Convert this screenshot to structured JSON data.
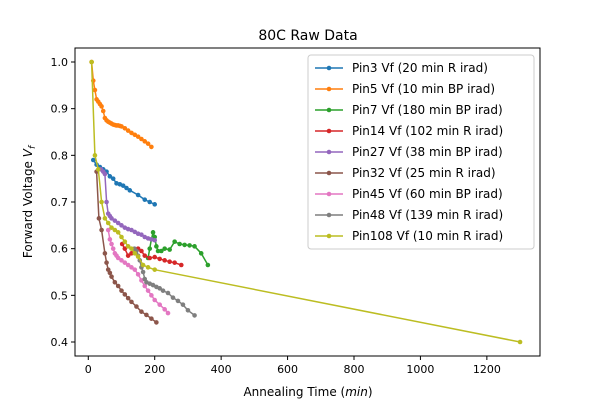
{
  "chart_data": {
    "type": "line",
    "title": "80C Raw Data",
    "xlabel_main": "Annealing Time (",
    "xlabel_italic": "min",
    "xlabel_end": ")",
    "ylabel_main": "Forward Voltage ",
    "ylabel_italic": "V",
    "ylabel_sub": "f",
    "xlim": [
      -40,
      1360
    ],
    "ylim": [
      0.37,
      1.03
    ],
    "xticks": [
      0,
      200,
      400,
      600,
      800,
      1000,
      1200
    ],
    "yticks": [
      0.4,
      0.5,
      0.6,
      0.7,
      0.8,
      0.9,
      1.0
    ],
    "xtick_labels": [
      "0",
      "200",
      "400",
      "600",
      "800",
      "1000",
      "1200"
    ],
    "ytick_labels": [
      "0.4",
      "0.5",
      "0.6",
      "0.7",
      "0.8",
      "0.9",
      "1.0"
    ],
    "grid": false,
    "legend_position": "upper-right",
    "series": [
      {
        "name": "Pin3 Vf (20 min R irad)",
        "color": "#1f77b4",
        "x": [
          15,
          25,
          35,
          45,
          55,
          65,
          75,
          85,
          95,
          105,
          115,
          125,
          150,
          170,
          185,
          200
        ],
        "y": [
          0.79,
          0.78,
          0.775,
          0.77,
          0.765,
          0.755,
          0.75,
          0.74,
          0.738,
          0.735,
          0.73,
          0.725,
          0.715,
          0.705,
          0.7,
          0.695
        ]
      },
      {
        "name": "Pin5 Vf (10 min BP irad)",
        "color": "#ff7f0e",
        "x": [
          10,
          15,
          20,
          25,
          30,
          35,
          40,
          45,
          50,
          55,
          60,
          65,
          70,
          75,
          80,
          85,
          90,
          95,
          100,
          110,
          120,
          130,
          140,
          150,
          160,
          170,
          180,
          190
        ],
        "y": [
          1.0,
          0.96,
          0.94,
          0.92,
          0.915,
          0.91,
          0.905,
          0.895,
          0.88,
          0.875,
          0.872,
          0.87,
          0.868,
          0.866,
          0.865,
          0.864,
          0.864,
          0.863,
          0.862,
          0.858,
          0.853,
          0.848,
          0.844,
          0.84,
          0.835,
          0.83,
          0.825,
          0.818
        ]
      },
      {
        "name": "Pin7 Vf (180 min BP irad)",
        "color": "#2ca02c",
        "x": [
          180,
          185,
          190,
          195,
          200,
          205,
          210,
          220,
          230,
          245,
          260,
          275,
          290,
          305,
          320,
          340,
          360
        ],
        "y": [
          0.58,
          0.6,
          0.62,
          0.635,
          0.625,
          0.605,
          0.595,
          0.595,
          0.6,
          0.598,
          0.615,
          0.61,
          0.608,
          0.607,
          0.605,
          0.59,
          0.565
        ]
      },
      {
        "name": "Pin14 Vf (102 min R irad)",
        "color": "#d62728",
        "x": [
          102,
          110,
          120,
          130,
          140,
          150,
          160,
          170,
          185,
          200,
          215,
          230,
          245,
          260,
          280
        ],
        "y": [
          0.61,
          0.6,
          0.585,
          0.59,
          0.595,
          0.6,
          0.595,
          0.585,
          0.58,
          0.582,
          0.578,
          0.575,
          0.572,
          0.57,
          0.565
        ]
      },
      {
        "name": "Pin27 Vf (38 min BP irad)",
        "color": "#9467bd",
        "x": [
          38,
          45,
          50,
          55,
          60,
          65,
          70,
          80,
          90,
          100,
          110,
          120,
          130,
          140,
          150,
          160,
          170,
          180,
          190,
          200
        ],
        "y": [
          0.77,
          0.765,
          0.76,
          0.7,
          0.675,
          0.67,
          0.665,
          0.66,
          0.655,
          0.65,
          0.645,
          0.642,
          0.64,
          0.636,
          0.632,
          0.63,
          0.625,
          0.622,
          0.62,
          0.618
        ]
      },
      {
        "name": "Pin32 Vf (25 min R irad)",
        "color": "#8c564b",
        "x": [
          25,
          32,
          40,
          50,
          55,
          60,
          65,
          70,
          80,
          90,
          100,
          110,
          120,
          130,
          145,
          160,
          175,
          190,
          205
        ],
        "y": [
          0.765,
          0.665,
          0.64,
          0.59,
          0.57,
          0.555,
          0.548,
          0.54,
          0.528,
          0.52,
          0.51,
          0.502,
          0.494,
          0.486,
          0.476,
          0.465,
          0.458,
          0.45,
          0.442
        ]
      },
      {
        "name": "Pin45 Vf (60 min BP irad)",
        "color": "#e377c2",
        "x": [
          60,
          65,
          70,
          75,
          80,
          85,
          90,
          100,
          110,
          120,
          130,
          140,
          150,
          160,
          170,
          180,
          190,
          200,
          215,
          230,
          240
        ],
        "y": [
          0.64,
          0.62,
          0.61,
          0.6,
          0.59,
          0.585,
          0.58,
          0.575,
          0.57,
          0.565,
          0.56,
          0.555,
          0.545,
          0.532,
          0.52,
          0.51,
          0.5,
          0.49,
          0.48,
          0.47,
          0.462
        ]
      },
      {
        "name": "Pin48 Vf (139 min R irad)",
        "color": "#7f7f7f",
        "x": [
          139,
          145,
          150,
          155,
          160,
          165,
          170,
          175,
          185,
          195,
          205,
          215,
          225,
          240,
          255,
          270,
          285,
          300,
          320
        ],
        "y": [
          0.6,
          0.595,
          0.585,
          0.575,
          0.56,
          0.55,
          0.535,
          0.528,
          0.525,
          0.522,
          0.518,
          0.515,
          0.51,
          0.505,
          0.495,
          0.488,
          0.48,
          0.468,
          0.457
        ]
      },
      {
        "name": "Pin108 Vf (10 min R irad)",
        "color": "#bcbd22",
        "x": [
          10,
          20,
          30,
          40,
          50,
          60,
          70,
          80,
          90,
          100,
          110,
          120,
          130,
          140,
          150,
          165,
          180,
          200,
          1300
        ],
        "y": [
          1.0,
          0.8,
          0.77,
          0.7,
          0.665,
          0.655,
          0.645,
          0.64,
          0.635,
          0.625,
          0.615,
          0.605,
          0.6,
          0.59,
          0.583,
          0.565,
          0.56,
          0.555,
          0.4
        ]
      }
    ]
  }
}
